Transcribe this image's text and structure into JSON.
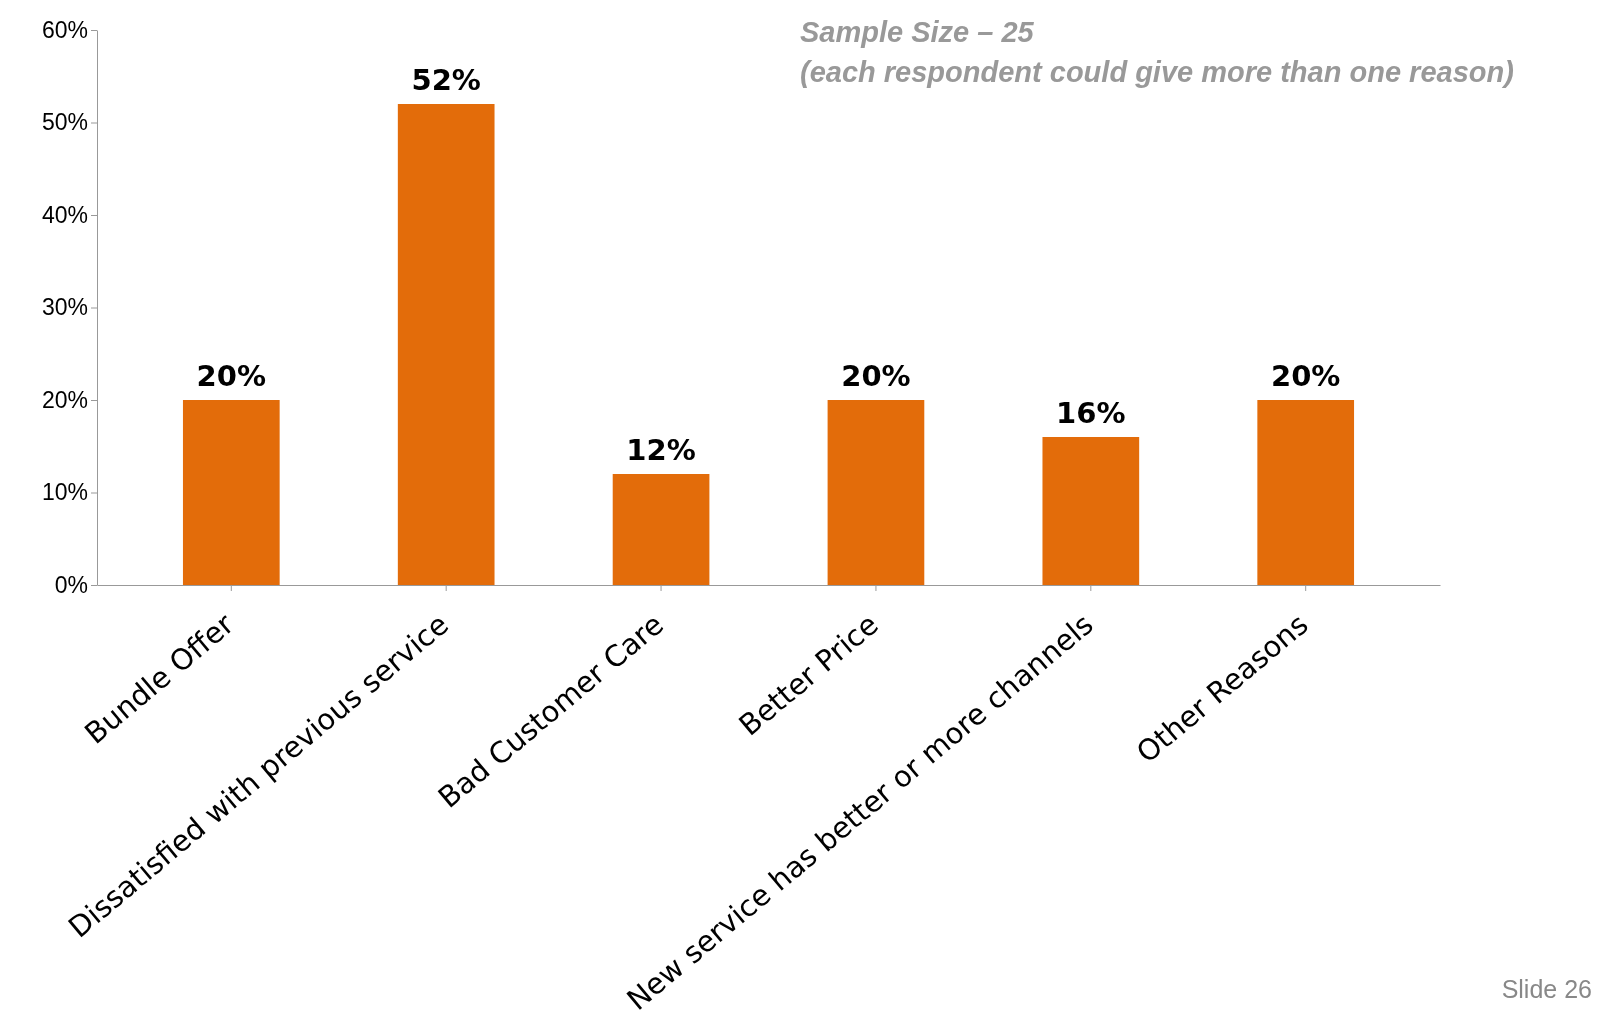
{
  "chart_data": {
    "type": "bar",
    "categories": [
      "Bundle Offer",
      "Dissatisfied with previous service",
      "Bad Customer Care",
      "Better Price",
      "New service has better or more channels",
      "Other Reasons"
    ],
    "values": [
      20,
      52,
      12,
      20,
      16,
      20
    ],
    "color": "#e36c0a",
    "value_labels": [
      "20%",
      "52%",
      "12%",
      "20%",
      "16%",
      "20%"
    ],
    "ylim": [
      0,
      60
    ],
    "yticks": [
      {
        "value": 0,
        "label": "0%"
      },
      {
        "value": 10,
        "label": "10%"
      },
      {
        "value": 20,
        "label": "20%"
      },
      {
        "value": 30,
        "label": "30%"
      },
      {
        "value": 40,
        "label": "40%"
      },
      {
        "value": 50,
        "label": "50%"
      },
      {
        "value": 60,
        "label": "60%"
      }
    ],
    "grid": false,
    "annotations": [
      "Sample Size – 25",
      "(each respondent could give more than one reason)",
      "Slide 26"
    ]
  }
}
